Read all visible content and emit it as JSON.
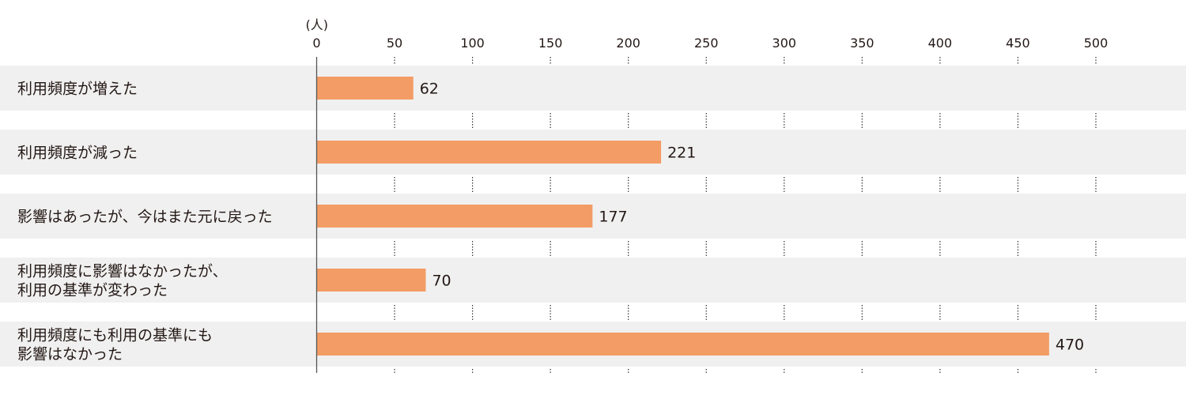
{
  "chart_data": {
    "type": "bar",
    "orientation": "horizontal",
    "unit_label": "(人)",
    "categories": [
      [
        "利用頻度が増えた"
      ],
      [
        "利用頻度が減った"
      ],
      [
        "影響はあったが、今はまた元に戻った"
      ],
      [
        "利用頻度に影響はなかったが、",
        "利用の基準が変わった"
      ],
      [
        "利用頻度にも利用の基準にも",
        "影響はなかった"
      ]
    ],
    "values": [
      62,
      221,
      177,
      70,
      470
    ],
    "xlim": [
      0,
      500
    ],
    "ticks": [
      0,
      50,
      100,
      150,
      200,
      250,
      300,
      350,
      400,
      450,
      500
    ],
    "grid": "dotted vertical",
    "colors": {
      "bar": "#f39c65",
      "band": "#f0f0f0",
      "axis": "#555555"
    }
  }
}
